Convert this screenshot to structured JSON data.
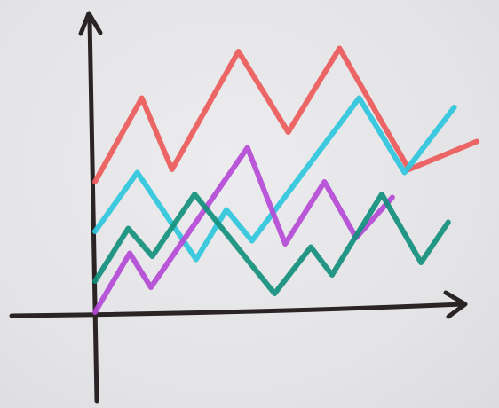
{
  "chart_data": {
    "type": "line",
    "title": "",
    "xlabel": "",
    "ylabel": "",
    "grid": false,
    "legend": "none",
    "axis_color": "#2a2424",
    "series": [
      {
        "color": "#ec5a5a",
        "points": [
          [
            0,
            42
          ],
          [
            1.55,
            69
          ],
          [
            2.55,
            46
          ],
          [
            4.75,
            84
          ],
          [
            6.4,
            58
          ],
          [
            8.1,
            85
          ],
          [
            10.4,
            46
          ],
          [
            12.65,
            55
          ]
        ]
      },
      {
        "color": "#2ec6dc",
        "points": [
          [
            0,
            26
          ],
          [
            1.4,
            45
          ],
          [
            3.35,
            17
          ],
          [
            4.35,
            33
          ],
          [
            5.2,
            23
          ],
          [
            8.75,
            69
          ],
          [
            10.25,
            45
          ],
          [
            11.9,
            66
          ]
        ]
      },
      {
        "color": "#b44ad6",
        "points": [
          [
            0,
            0
          ],
          [
            1.15,
            19
          ],
          [
            1.85,
            8
          ],
          [
            5.05,
            53
          ],
          [
            6.3,
            22
          ],
          [
            7.6,
            42
          ],
          [
            8.65,
            24
          ],
          [
            9.85,
            37
          ]
        ]
      },
      {
        "color": "#138f7c",
        "points": [
          [
            0,
            10
          ],
          [
            1.1,
            27
          ],
          [
            1.9,
            18
          ],
          [
            3.3,
            38
          ],
          [
            5.95,
            6
          ],
          [
            7.15,
            21
          ],
          [
            7.85,
            12
          ],
          [
            9.5,
            38
          ],
          [
            10.8,
            16
          ],
          [
            11.7,
            29
          ]
        ]
      }
    ]
  }
}
